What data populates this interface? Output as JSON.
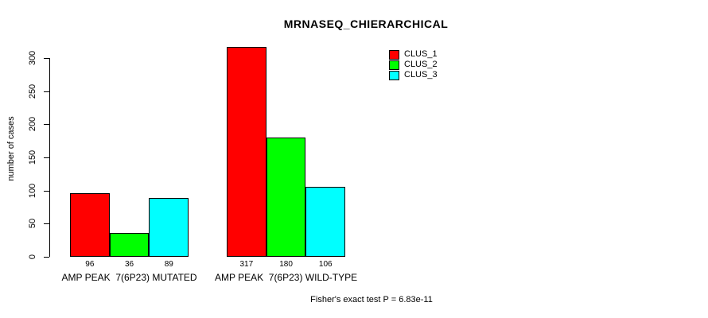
{
  "chart_data": {
    "type": "bar",
    "title": "MRNASEQ_CHIERARCHICAL",
    "ylabel": "number of cases",
    "xlabel": "",
    "categories": [
      "AMP PEAK  7(6P23) MUTATED",
      "AMP PEAK  7(6P23) WILD-TYPE"
    ],
    "series": [
      {
        "name": "CLUS_1",
        "color": "#ff0000",
        "values": [
          96,
          317
        ]
      },
      {
        "name": "CLUS_2",
        "color": "#00ff00",
        "values": [
          36,
          180
        ]
      },
      {
        "name": "CLUS_3",
        "color": "#00ffff",
        "values": [
          89,
          106
        ]
      }
    ],
    "bar_value_labels": [
      [
        "96",
        "36",
        "89"
      ],
      [
        "317",
        "180",
        "106"
      ]
    ],
    "ylim": [
      0,
      300
    ],
    "yticks": [
      0,
      50,
      100,
      150,
      200,
      250,
      300
    ],
    "grid": false,
    "legend_position": "top-right",
    "bar_border_color": "#000000"
  },
  "footer": {
    "caption": "Fisher's exact test P = 6.83e-11"
  }
}
